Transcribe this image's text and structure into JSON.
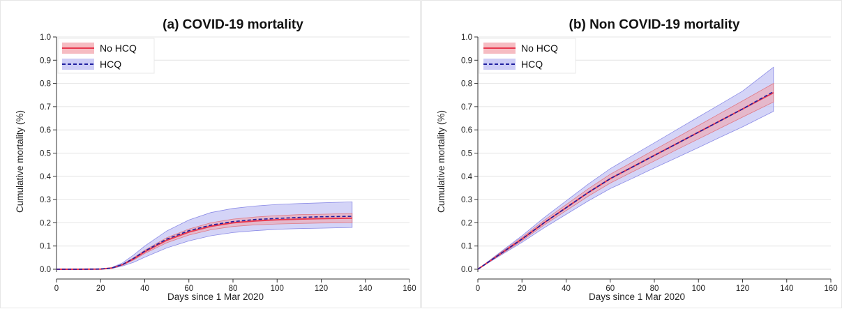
{
  "colors": {
    "no_hcq_line": "#e8384f",
    "no_hcq_band": "#f2a0a8",
    "hcq_line": "#1f1fa0",
    "hcq_band": "#b8b8f2",
    "grid": "#e4e4e4"
  },
  "chart_data": [
    {
      "type": "line",
      "title": "(a) COVID-19 mortality",
      "xlabel": "Days since 1 Mar 2020",
      "ylabel": "Cumulative mortality (%)",
      "xlim": [
        0,
        160
      ],
      "ylim": [
        0,
        1
      ],
      "xticks": [
        "0",
        "20",
        "40",
        "60",
        "80",
        "100",
        "120",
        "140",
        "160"
      ],
      "yticks": [
        "0.0",
        "0.1",
        "0.2",
        "0.3",
        "0.4",
        "0.5",
        "0.6",
        "0.7",
        "0.8",
        "0.9",
        "1.0"
      ],
      "grid": "horizontal",
      "legend_position": "top-left",
      "x": [
        0,
        10,
        20,
        25,
        30,
        35,
        40,
        50,
        60,
        70,
        80,
        90,
        100,
        110,
        120,
        134
      ],
      "series": [
        {
          "name": "No HCQ",
          "style": "solid",
          "values": [
            0,
            0,
            0.001,
            0.005,
            0.02,
            0.045,
            0.075,
            0.125,
            0.16,
            0.185,
            0.2,
            0.208,
            0.213,
            0.216,
            0.218,
            0.22
          ],
          "lower": [
            0,
            0,
            0.001,
            0.004,
            0.018,
            0.04,
            0.068,
            0.114,
            0.147,
            0.17,
            0.184,
            0.191,
            0.195,
            0.197,
            0.199,
            0.2
          ],
          "upper": [
            0,
            0,
            0.001,
            0.006,
            0.022,
            0.05,
            0.082,
            0.136,
            0.173,
            0.2,
            0.216,
            0.225,
            0.231,
            0.235,
            0.237,
            0.24
          ]
        },
        {
          "name": "HCQ",
          "style": "dashed",
          "values": [
            0,
            0,
            0.001,
            0.005,
            0.021,
            0.047,
            0.078,
            0.13,
            0.166,
            0.19,
            0.205,
            0.214,
            0.219,
            0.223,
            0.226,
            0.228
          ],
          "lower": [
            0,
            0,
            0.001,
            0.003,
            0.014,
            0.03,
            0.052,
            0.092,
            0.122,
            0.144,
            0.158,
            0.166,
            0.172,
            0.175,
            0.177,
            0.18
          ],
          "upper": [
            0,
            0,
            0.002,
            0.007,
            0.028,
            0.062,
            0.1,
            0.165,
            0.212,
            0.244,
            0.262,
            0.272,
            0.279,
            0.283,
            0.286,
            0.29
          ]
        }
      ]
    },
    {
      "type": "line",
      "title": "(b) Non COVID-19 mortality",
      "xlabel": "Days since 1 Mar 2020",
      "ylabel": "Cumulative mortality (%)",
      "xlim": [
        0,
        160
      ],
      "ylim": [
        0,
        1
      ],
      "xticks": [
        "0",
        "20",
        "40",
        "60",
        "80",
        "100",
        "120",
        "140",
        "160"
      ],
      "yticks": [
        "0.0",
        "0.1",
        "0.2",
        "0.3",
        "0.4",
        "0.5",
        "0.6",
        "0.7",
        "0.8",
        "0.9",
        "1.0"
      ],
      "grid": "horizontal",
      "legend_position": "top-left",
      "x": [
        0,
        10,
        20,
        30,
        40,
        50,
        60,
        70,
        80,
        90,
        100,
        110,
        120,
        134
      ],
      "series": [
        {
          "name": "No HCQ",
          "style": "solid",
          "values": [
            0,
            0.065,
            0.13,
            0.2,
            0.265,
            0.33,
            0.39,
            0.44,
            0.49,
            0.54,
            0.59,
            0.64,
            0.69,
            0.76
          ],
          "lower": [
            0,
            0.061,
            0.123,
            0.19,
            0.252,
            0.314,
            0.371,
            0.419,
            0.466,
            0.514,
            0.561,
            0.608,
            0.655,
            0.72
          ],
          "upper": [
            0,
            0.069,
            0.137,
            0.21,
            0.278,
            0.346,
            0.409,
            0.461,
            0.514,
            0.566,
            0.619,
            0.672,
            0.725,
            0.8
          ]
        },
        {
          "name": "HCQ",
          "style": "dashed",
          "values": [
            0,
            0.065,
            0.13,
            0.2,
            0.265,
            0.33,
            0.39,
            0.44,
            0.49,
            0.54,
            0.59,
            0.64,
            0.69,
            0.765
          ],
          "lower": [
            0,
            0.058,
            0.116,
            0.178,
            0.236,
            0.294,
            0.347,
            0.391,
            0.436,
            0.48,
            0.524,
            0.569,
            0.613,
            0.68
          ],
          "upper": [
            0,
            0.072,
            0.144,
            0.222,
            0.294,
            0.366,
            0.433,
            0.489,
            0.544,
            0.6,
            0.656,
            0.711,
            0.767,
            0.87
          ]
        }
      ]
    }
  ]
}
